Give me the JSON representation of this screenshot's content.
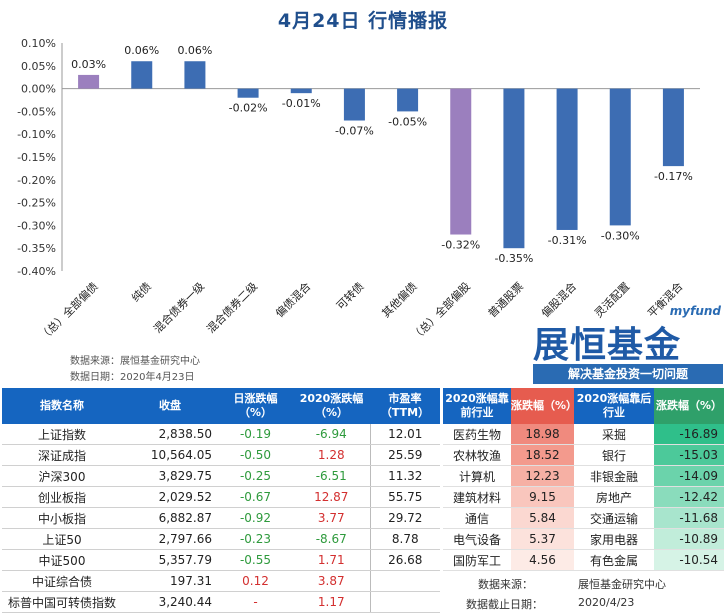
{
  "title": "4月24日  行情播报",
  "chart_data": {
    "type": "bar",
    "categories": [
      "（总）全部偏债",
      "纯债",
      "混合债券一级",
      "混合债券二级",
      "偏债混合",
      "可转债",
      "其他偏债",
      "（总）全部偏股",
      "普通股票",
      "偏股混合",
      "灵活配置",
      "平衡混合"
    ],
    "values": [
      0.03,
      0.06,
      0.06,
      -0.02,
      -0.01,
      -0.07,
      -0.05,
      -0.32,
      -0.35,
      -0.31,
      -0.3,
      -0.17
    ],
    "labels": [
      "0.03%",
      "0.06%",
      "0.06%",
      "-0.02%",
      "-0.01%",
      "-0.07%",
      "-0.05%",
      "-0.32%",
      "-0.35%",
      "-0.31%",
      "-0.30%",
      "-0.17%"
    ],
    "colors": [
      "#9b7fbe",
      "#3d6db3",
      "#3d6db3",
      "#3d6db3",
      "#3d6db3",
      "#3d6db3",
      "#3d6db3",
      "#9b7fbe",
      "#3d6db3",
      "#3d6db3",
      "#3d6db3",
      "#3d6db3"
    ],
    "yticks": [
      "0.10%",
      "0.05%",
      "0.00%",
      "-0.05%",
      "-0.10%",
      "-0.15%",
      "-0.20%",
      "-0.25%",
      "-0.30%",
      "-0.35%",
      "-0.40%"
    ],
    "ylim": [
      -0.4,
      0.1
    ]
  },
  "chart_source": "数据来源：展恒基金研究中心",
  "chart_date": "数据日期：2020年4月23日",
  "logo": {
    "en": "myfund",
    "cn": "展恒基金",
    "slogan": "解决基金投资一切问题"
  },
  "index_table": {
    "headers": [
      "指数名称",
      "收盘",
      "日涨跌幅（%）",
      "2020涨跌幅（%）",
      "市盈率（TTM）"
    ],
    "rows": [
      {
        "name": "上证指数",
        "close": "2,838.50",
        "day": "-0.19",
        "ytd": "-6.94",
        "pe": "12.01"
      },
      {
        "name": "深证成指",
        "close": "10,564.05",
        "day": "-0.50",
        "ytd": "1.28",
        "pe": "25.59"
      },
      {
        "name": "沪深300",
        "close": "3,829.75",
        "day": "-0.25",
        "ytd": "-6.51",
        "pe": "11.32"
      },
      {
        "name": "创业板指",
        "close": "2,029.52",
        "day": "-0.67",
        "ytd": "12.87",
        "pe": "55.75"
      },
      {
        "name": "中小板指",
        "close": "6,882.87",
        "day": "-0.92",
        "ytd": "3.77",
        "pe": "29.72"
      },
      {
        "name": "上证50",
        "close": "2,797.66",
        "day": "-0.23",
        "ytd": "-8.67",
        "pe": "8.78"
      },
      {
        "name": "中证500",
        "close": "5,357.79",
        "day": "-0.55",
        "ytd": "1.71",
        "pe": "26.68"
      },
      {
        "name": "中证综合债",
        "close": "197.31",
        "day": "0.12",
        "ytd": "3.87",
        "pe": ""
      },
      {
        "name": "标普中国可转债指数",
        "close": "3,240.44",
        "day": "-",
        "ytd": "1.17",
        "pe": ""
      }
    ]
  },
  "sector_table": {
    "headers": [
      "2020涨幅靠前行业",
      "涨跌幅（%）",
      "2020涨幅靠后行业",
      "涨跌幅（%）"
    ],
    "rows": [
      {
        "top": "医药生物",
        "top_v": "18.98",
        "bot": "采掘",
        "bot_v": "-16.89"
      },
      {
        "top": "农林牧渔",
        "top_v": "18.52",
        "bot": "银行",
        "bot_v": "-15.03"
      },
      {
        "top": "计算机",
        "top_v": "12.23",
        "bot": "非银金融",
        "bot_v": "-14.09"
      },
      {
        "top": "建筑材料",
        "top_v": "9.15",
        "bot": "房地产",
        "bot_v": "-12.42"
      },
      {
        "top": "通信",
        "top_v": "5.84",
        "bot": "交通运输",
        "bot_v": "-11.68"
      },
      {
        "top": "电气设备",
        "top_v": "5.37",
        "bot": "家用电器",
        "bot_v": "-10.89"
      },
      {
        "top": "国防军工",
        "top_v": "4.56",
        "bot": "有色金属",
        "bot_v": "-10.54"
      }
    ],
    "source": "数据来源：",
    "source_v": "展恒基金研究中心",
    "cutoff": "数据截止日期：",
    "cutoff_v": "2020/4/23"
  }
}
